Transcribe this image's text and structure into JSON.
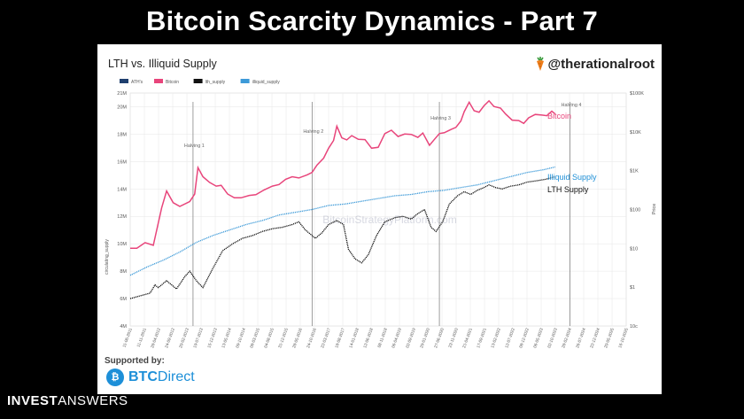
{
  "slide": {
    "title": "Bitcoin Scarcity Dynamics - Part 7",
    "brand_bold": "INVEST",
    "brand_light": "ANSWERS"
  },
  "panel": {
    "handle": "@therationalroot",
    "supported_by": "Supported by:",
    "sponsor_bold": "BTC",
    "sponsor_light": "Direct"
  },
  "chart_data": {
    "type": "line",
    "title": "LTH vs. Illiquid Supply",
    "watermark": "BitcoinStrategyPlatform.com",
    "ylabel_left": "circulating_supply",
    "ylabel_right": "Price",
    "y_left": {
      "min": 4,
      "max": 21,
      "ticks": [
        "21M",
        "20M",
        "18M",
        "16M",
        "14M",
        "12M",
        "10M",
        "8M",
        "6M",
        "4M"
      ],
      "tick_values": [
        21,
        20,
        18,
        16,
        14,
        12,
        10,
        8,
        6,
        4
      ]
    },
    "y_right": {
      "log": true,
      "min": 0.1,
      "max": 100000,
      "ticks": [
        "$100K",
        "$10K",
        "$1K",
        "$100",
        "$10",
        "$1",
        "10c"
      ],
      "tick_values": [
        100000,
        10000,
        1000,
        100,
        10,
        1,
        0.1
      ]
    },
    "x_range": [
      2011.0,
      2026.0
    ],
    "x_ticks": [
      "11-06-2011",
      "11-11-2011",
      "28-04-2012",
      "24-09-2012",
      "20-02-2013",
      "19-07-2013",
      "15-12-2013",
      "13-05-2014",
      "09-10-2014",
      "08-03-2015",
      "04-08-2015",
      "31-12-2015",
      "28-05-2016",
      "24-10-2016",
      "22-03-2017",
      "18-08-2017",
      "14-01-2018",
      "12-06-2018",
      "08-11-2018",
      "06-04-2019",
      "02-09-2019",
      "29-01-2020",
      "27-06-2020",
      "23-11-2020",
      "21-04-2021",
      "17-09-2021",
      "13-02-2022",
      "12-07-2022",
      "08-12-2022",
      "06-05-2023",
      "02-10-2023",
      "28-02-2024",
      "26-07-2024",
      "22-12-2024",
      "20-05-2025",
      "16-10-2025"
    ],
    "legend": [
      "ATH's",
      "Bitcoin",
      "lth_supply",
      "illiquid_supply"
    ],
    "halvings": [
      {
        "label": "Halving 1",
        "x": 2012.9
      },
      {
        "label": "Halving 2",
        "x": 2016.5
      },
      {
        "label": "Halving 3",
        "x": 2020.35
      },
      {
        "label": "Halving 4",
        "x": 2024.3
      }
    ],
    "series_labels": {
      "price": "Bitcoin",
      "illiquid": "Illiquid Supply",
      "lth": "LTH Supply"
    },
    "colors": {
      "price": "#e8457b",
      "ath": "#1f3f6e",
      "illiquid": "#3d9ad8",
      "lth": "#111111",
      "grid": "#e6e6e6"
    },
    "series": [
      {
        "name": "Bitcoin",
        "axis": "right",
        "points": [
          [
            2011.0,
            10
          ],
          [
            2011.2,
            10
          ],
          [
            2011.45,
            14
          ],
          [
            2011.7,
            12
          ],
          [
            2011.95,
            110
          ],
          [
            2012.1,
            300
          ],
          [
            2012.3,
            150
          ],
          [
            2012.5,
            120
          ],
          [
            2012.8,
            160
          ],
          [
            2012.95,
            250
          ],
          [
            2013.05,
            1200
          ],
          [
            2013.2,
            700
          ],
          [
            2013.4,
            500
          ],
          [
            2013.6,
            400
          ],
          [
            2013.75,
            420
          ],
          [
            2013.95,
            250
          ],
          [
            2014.15,
            200
          ],
          [
            2014.35,
            200
          ],
          [
            2014.6,
            230
          ],
          [
            2014.8,
            240
          ],
          [
            2015.05,
            320
          ],
          [
            2015.3,
            400
          ],
          [
            2015.5,
            440
          ],
          [
            2015.7,
            600
          ],
          [
            2015.9,
            700
          ],
          [
            2016.1,
            650
          ],
          [
            2016.35,
            780
          ],
          [
            2016.5,
            900
          ],
          [
            2016.65,
            1400
          ],
          [
            2016.85,
            2100
          ],
          [
            2017.0,
            3800
          ],
          [
            2017.15,
            6000
          ],
          [
            2017.25,
            14000
          ],
          [
            2017.4,
            7000
          ],
          [
            2017.55,
            6200
          ],
          [
            2017.7,
            8000
          ],
          [
            2017.9,
            6400
          ],
          [
            2018.1,
            6300
          ],
          [
            2018.3,
            3800
          ],
          [
            2018.5,
            4000
          ],
          [
            2018.7,
            9000
          ],
          [
            2018.9,
            11000
          ],
          [
            2019.1,
            7600
          ],
          [
            2019.3,
            8800
          ],
          [
            2019.5,
            8600
          ],
          [
            2019.7,
            7200
          ],
          [
            2019.85,
            9300
          ],
          [
            2020.05,
            4500
          ],
          [
            2020.2,
            6400
          ],
          [
            2020.35,
            9000
          ],
          [
            2020.5,
            9500
          ],
          [
            2020.7,
            11500
          ],
          [
            2020.85,
            13000
          ],
          [
            2021.0,
            19000
          ],
          [
            2021.1,
            33000
          ],
          [
            2021.25,
            58000
          ],
          [
            2021.4,
            35000
          ],
          [
            2021.55,
            32000
          ],
          [
            2021.7,
            47000
          ],
          [
            2021.85,
            63000
          ],
          [
            2022.0,
            45000
          ],
          [
            2022.2,
            41000
          ],
          [
            2022.35,
            29000
          ],
          [
            2022.55,
            20000
          ],
          [
            2022.75,
            19500
          ],
          [
            2022.9,
            16500
          ],
          [
            2023.05,
            23000
          ],
          [
            2023.25,
            28000
          ],
          [
            2023.45,
            27000
          ],
          [
            2023.6,
            26000
          ],
          [
            2023.75,
            34000
          ],
          [
            2023.85,
            29000
          ]
        ]
      },
      {
        "name": "illiquid_supply",
        "axis": "left",
        "points": [
          [
            2011.0,
            7.7
          ],
          [
            2011.5,
            8.3
          ],
          [
            2012.0,
            8.8
          ],
          [
            2012.5,
            9.4
          ],
          [
            2013.0,
            10.1
          ],
          [
            2013.5,
            10.6
          ],
          [
            2014.0,
            11.0
          ],
          [
            2014.5,
            11.4
          ],
          [
            2015.0,
            11.7
          ],
          [
            2015.5,
            12.1
          ],
          [
            2016.0,
            12.3
          ],
          [
            2016.5,
            12.5
          ],
          [
            2017.0,
            12.8
          ],
          [
            2017.5,
            12.9
          ],
          [
            2018.0,
            13.1
          ],
          [
            2018.5,
            13.3
          ],
          [
            2019.0,
            13.5
          ],
          [
            2019.5,
            13.6
          ],
          [
            2020.0,
            13.8
          ],
          [
            2020.5,
            13.9
          ],
          [
            2021.0,
            14.1
          ],
          [
            2021.5,
            14.3
          ],
          [
            2022.0,
            14.6
          ],
          [
            2022.5,
            14.9
          ],
          [
            2023.0,
            15.2
          ],
          [
            2023.5,
            15.4
          ],
          [
            2023.85,
            15.6
          ]
        ]
      },
      {
        "name": "lth_supply",
        "axis": "left",
        "points": [
          [
            2011.0,
            6.0
          ],
          [
            2011.3,
            6.2
          ],
          [
            2011.6,
            6.4
          ],
          [
            2011.75,
            7.0
          ],
          [
            2011.85,
            6.8
          ],
          [
            2012.1,
            7.3
          ],
          [
            2012.4,
            6.7
          ],
          [
            2012.65,
            7.6
          ],
          [
            2012.8,
            8.0
          ],
          [
            2013.0,
            7.3
          ],
          [
            2013.2,
            6.8
          ],
          [
            2013.5,
            8.2
          ],
          [
            2013.8,
            9.5
          ],
          [
            2014.1,
            10.0
          ],
          [
            2014.4,
            10.4
          ],
          [
            2014.7,
            10.6
          ],
          [
            2015.0,
            10.9
          ],
          [
            2015.3,
            11.1
          ],
          [
            2015.6,
            11.2
          ],
          [
            2015.9,
            11.4
          ],
          [
            2016.1,
            11.6
          ],
          [
            2016.3,
            11.0
          ],
          [
            2016.6,
            10.4
          ],
          [
            2016.8,
            10.8
          ],
          [
            2017.0,
            11.4
          ],
          [
            2017.25,
            11.7
          ],
          [
            2017.45,
            11.4
          ],
          [
            2017.6,
            9.6
          ],
          [
            2017.8,
            8.9
          ],
          [
            2018.0,
            8.6
          ],
          [
            2018.2,
            9.2
          ],
          [
            2018.45,
            10.6
          ],
          [
            2018.7,
            11.6
          ],
          [
            2019.0,
            11.9
          ],
          [
            2019.25,
            12.0
          ],
          [
            2019.5,
            11.8
          ],
          [
            2019.7,
            12.2
          ],
          [
            2019.9,
            12.5
          ],
          [
            2020.1,
            11.2
          ],
          [
            2020.25,
            10.9
          ],
          [
            2020.45,
            11.6
          ],
          [
            2020.65,
            12.9
          ],
          [
            2020.9,
            13.5
          ],
          [
            2021.1,
            13.8
          ],
          [
            2021.3,
            13.6
          ],
          [
            2021.5,
            13.9
          ],
          [
            2021.7,
            14.1
          ],
          [
            2021.85,
            14.3
          ],
          [
            2022.05,
            14.1
          ],
          [
            2022.25,
            14.0
          ],
          [
            2022.5,
            14.2
          ],
          [
            2022.75,
            14.3
          ],
          [
            2023.0,
            14.5
          ],
          [
            2023.3,
            14.6
          ],
          [
            2023.55,
            14.7
          ],
          [
            2023.85,
            14.9
          ]
        ]
      }
    ]
  }
}
